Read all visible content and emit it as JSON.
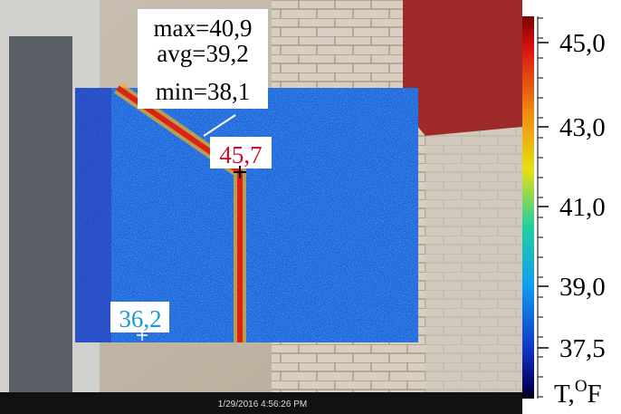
{
  "stats": {
    "max": "max=40,9",
    "avg": "avg=39,2",
    "min": "min=38,1"
  },
  "hot_spot": "45,7",
  "cold_spot": "36,2",
  "scale": {
    "labels": [
      "45,0",
      "43,0",
      "41,0",
      "39,0",
      "37,5"
    ],
    "unit": {
      "base": "T,",
      "sup": "O",
      "tail": "F"
    }
  },
  "timestamp": "1/29/2016 4:56:26 PM"
}
